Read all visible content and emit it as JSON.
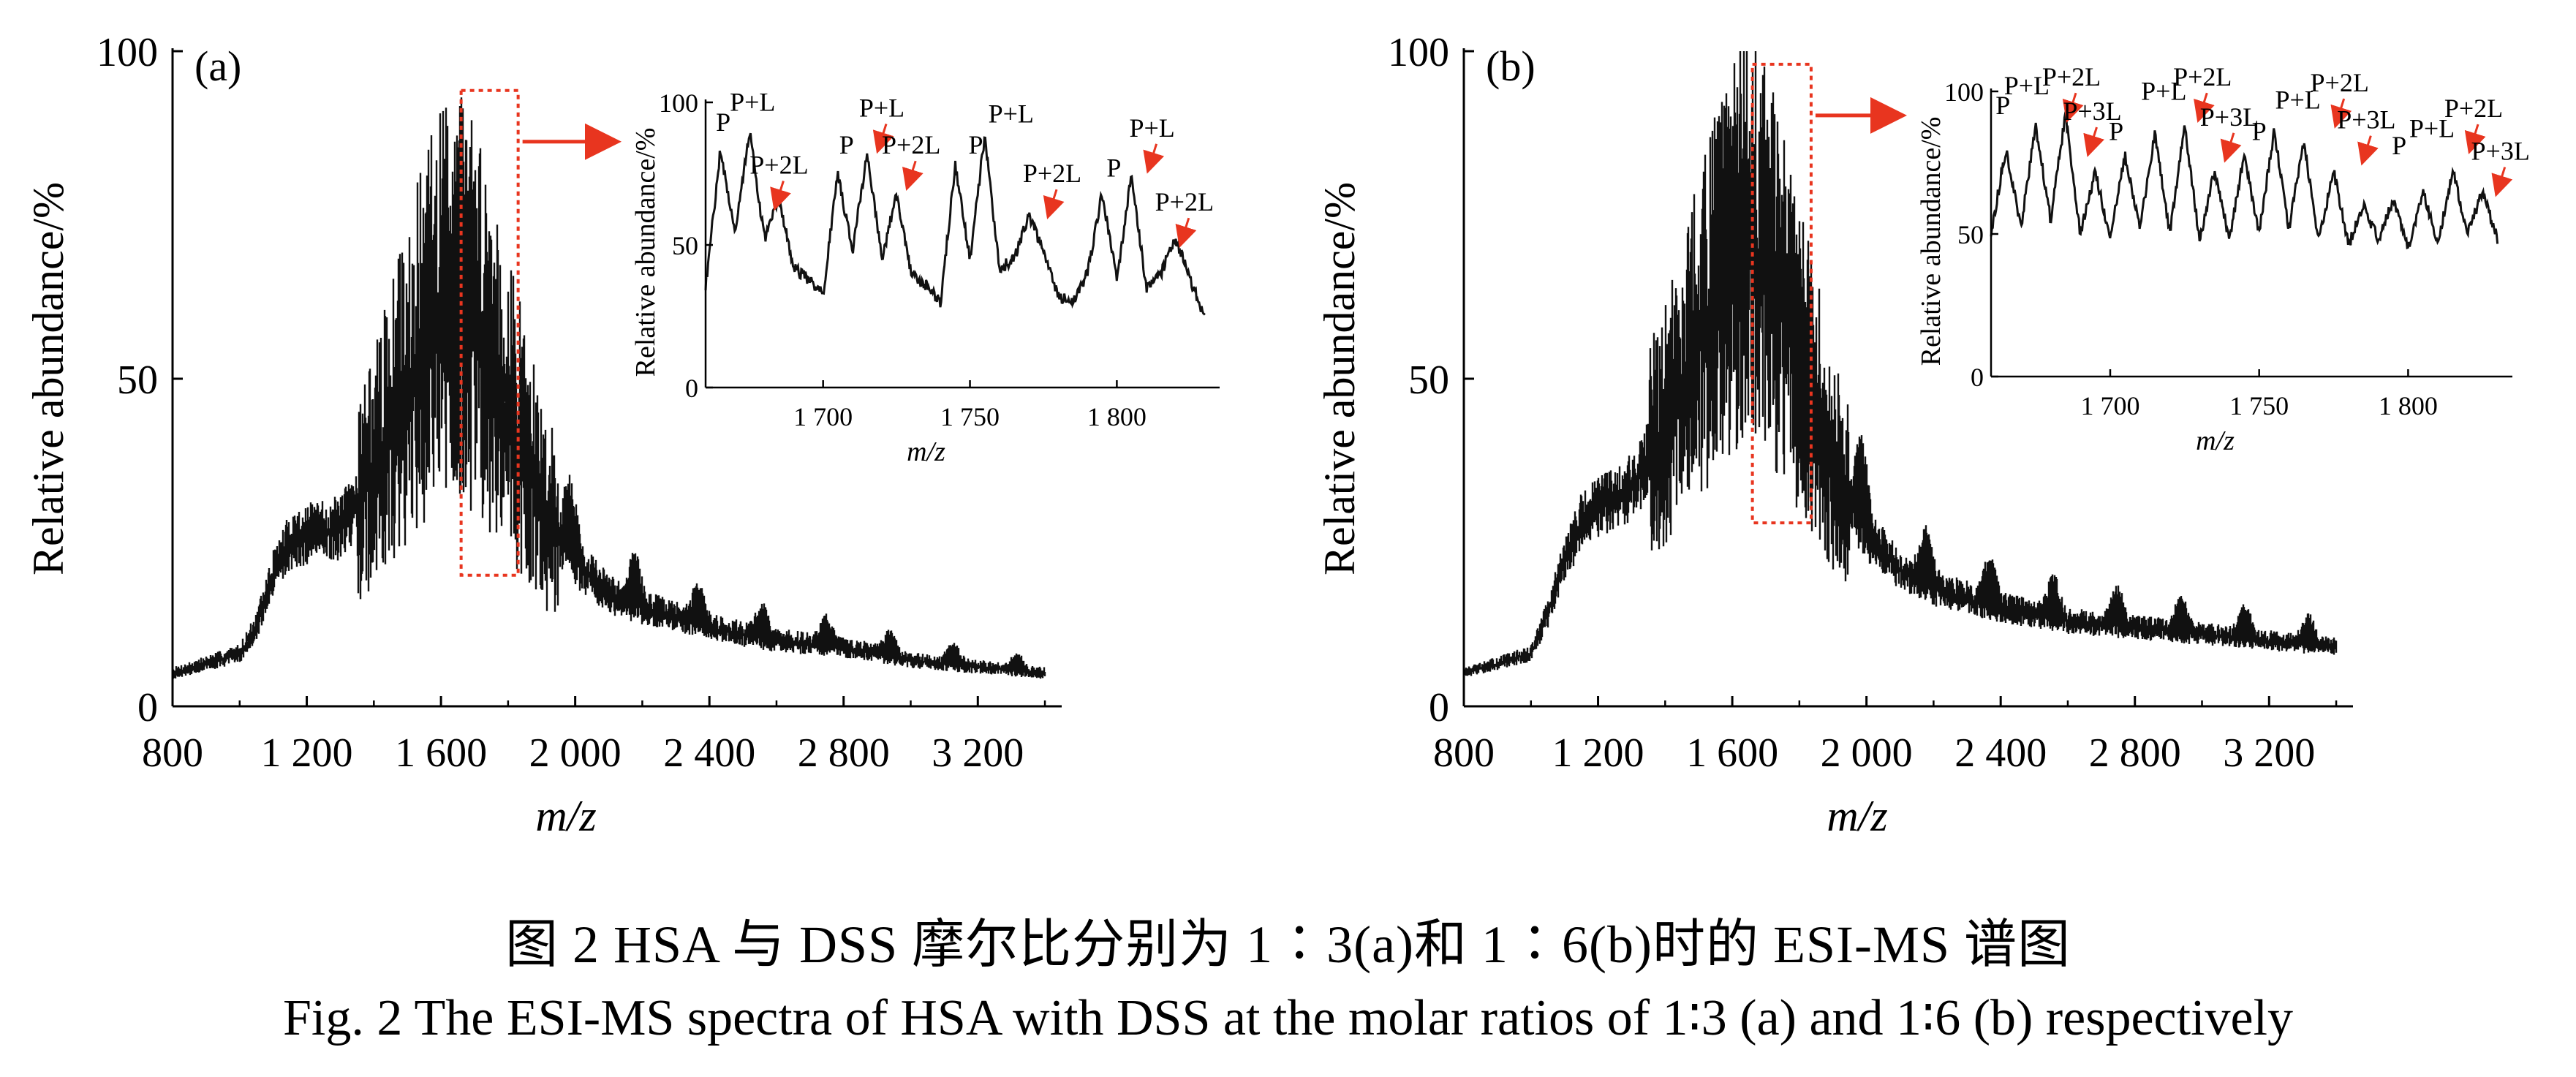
{
  "chart_data": [
    {
      "type": "line",
      "panel_label": "(a)",
      "xlabel": "m/z",
      "ylabel": "Relative abundance/%",
      "xlim": [
        800,
        3450
      ],
      "ylim": [
        0,
        100
      ],
      "xticks": [
        800,
        1200,
        1600,
        2000,
        2400,
        2800,
        3200
      ],
      "xtick_labels": [
        "800",
        "1 200",
        "1 600",
        "2 000",
        "2 400",
        "2 800",
        "3 200"
      ],
      "yticks": [
        0,
        50,
        100
      ],
      "ytick_labels": [
        "0",
        "50",
        "100"
      ],
      "series": [
        {
          "x": [
            800,
            1000,
            1050,
            1100,
            1150,
            1200,
            1300,
            1400,
            1500,
            1600,
            1650,
            1700,
            1750,
            1800,
            1850,
            1900,
            2000,
            2100,
            2200,
            2400,
            2600,
            2800,
            3000,
            3200,
            3400
          ],
          "y": [
            5,
            8,
            12,
            20,
            25,
            26,
            27,
            35,
            48,
            60,
            62,
            58,
            52,
            45,
            38,
            30,
            22,
            17,
            15,
            12,
            10,
            9,
            7,
            6,
            5
          ]
        }
      ],
      "zoom_box": {
        "x": [
          1660,
          1830
        ],
        "y": [
          20,
          94
        ]
      },
      "inset": {
        "xlabel": "m/z",
        "ylabel": "Relative abundance/%",
        "xlim": [
          1660,
          1835
        ],
        "ylim": [
          0,
          100
        ],
        "xticks": [
          1700,
          1750,
          1800
        ],
        "xtick_labels": [
          "1 700",
          "1 750",
          "1 800"
        ],
        "yticks": [
          0,
          50,
          100
        ],
        "ytick_labels": [
          "0",
          "50",
          "100"
        ],
        "series": [
          {
            "x": [
              1660,
              1665,
              1670,
              1675,
              1680,
              1685,
              1690,
              1695,
              1700,
              1705,
              1710,
              1715,
              1720,
              1725,
              1730,
              1735,
              1740,
              1745,
              1750,
              1755,
              1760,
              1765,
              1770,
              1775,
              1780,
              1785,
              1790,
              1795,
              1800,
              1805,
              1810,
              1815,
              1820,
              1825,
              1830
            ],
            "y": [
              35,
              83,
              55,
              90,
              52,
              66,
              42,
              38,
              33,
              75,
              48,
              82,
              45,
              68,
              40,
              36,
              30,
              78,
              45,
              88,
              42,
              45,
              60,
              48,
              32,
              30,
              40,
              68,
              38,
              75,
              35,
              40,
              52,
              38,
              24
            ]
          }
        ],
        "annotations": [
          {
            "text": "P",
            "x": 1666,
            "y": 90,
            "arrow": false
          },
          {
            "text": "P+L",
            "x": 1676,
            "y": 97,
            "arrow": false
          },
          {
            "text": "P+2L",
            "x": 1685,
            "y": 75,
            "arrow": true
          },
          {
            "text": "P",
            "x": 1708,
            "y": 82,
            "arrow": false
          },
          {
            "text": "P+L",
            "x": 1720,
            "y": 95,
            "arrow": true
          },
          {
            "text": "P+2L",
            "x": 1730,
            "y": 82,
            "arrow": true
          },
          {
            "text": "P",
            "x": 1752,
            "y": 82,
            "arrow": false
          },
          {
            "text": "P+L",
            "x": 1764,
            "y": 93,
            "arrow": false
          },
          {
            "text": "P+2L",
            "x": 1778,
            "y": 72,
            "arrow": true
          },
          {
            "text": "P",
            "x": 1799,
            "y": 74,
            "arrow": false
          },
          {
            "text": "P+L",
            "x": 1812,
            "y": 88,
            "arrow": true
          },
          {
            "text": "P+2L",
            "x": 1823,
            "y": 62,
            "arrow": true
          }
        ]
      }
    },
    {
      "type": "line",
      "panel_label": "(b)",
      "xlabel": "m/z",
      "ylabel": "Relative abundance/%",
      "xlim": [
        800,
        3450
      ],
      "ylim": [
        0,
        100
      ],
      "xticks": [
        800,
        1200,
        1600,
        2000,
        2400,
        2800,
        3200
      ],
      "xtick_labels": [
        "800",
        "1 200",
        "1 600",
        "2 000",
        "2 400",
        "2 800",
        "3 200"
      ],
      "yticks": [
        0,
        50,
        100
      ],
      "ytick_labels": [
        "0",
        "50",
        "100"
      ],
      "series": [
        {
          "x": [
            800,
            1000,
            1050,
            1100,
            1150,
            1200,
            1300,
            1400,
            1500,
            1600,
            1650,
            1700,
            1750,
            1800,
            1850,
            1900,
            2000,
            2100,
            2200,
            2400,
            2600,
            2800,
            3000,
            3200,
            3400
          ],
          "y": [
            5,
            8,
            14,
            22,
            28,
            30,
            33,
            42,
            55,
            68,
            70,
            66,
            60,
            52,
            45,
            36,
            26,
            21,
            18,
            15,
            13,
            12,
            11,
            10,
            9
          ]
        }
      ],
      "zoom_box": {
        "x": [
          1660,
          1835
        ],
        "y": [
          28,
          98
        ]
      },
      "inset": {
        "xlabel": "m/z",
        "ylabel": "Relative abundance/%",
        "xlim": [
          1660,
          1835
        ],
        "ylim": [
          0,
          100
        ],
        "xticks": [
          1700,
          1750,
          1800
        ],
        "xtick_labels": [
          "1 700",
          "1 750",
          "1 800"
        ],
        "yticks": [
          0,
          50,
          100
        ],
        "ytick_labels": [
          "0",
          "50",
          "100"
        ],
        "series": [
          {
            "x": [
              1660,
              1665,
              1670,
              1675,
              1680,
              1685,
              1690,
              1695,
              1700,
              1705,
              1710,
              1715,
              1720,
              1725,
              1730,
              1735,
              1740,
              1745,
              1750,
              1755,
              1760,
              1765,
              1770,
              1775,
              1780,
              1785,
              1790,
              1795,
              1800,
              1805,
              1810,
              1815,
              1820,
              1825,
              1830
            ],
            "y": [
              50,
              80,
              52,
              88,
              55,
              92,
              50,
              72,
              48,
              78,
              52,
              85,
              50,
              88,
              48,
              72,
              48,
              78,
              50,
              86,
              52,
              82,
              48,
              72,
              46,
              60,
              48,
              62,
              45,
              65,
              47,
              72,
              50,
              65,
              48
            ]
          }
        ],
        "annotations": [
          {
            "text": "P",
            "x": 1664,
            "y": 92,
            "arrow": false
          },
          {
            "text": "P+L",
            "x": 1672,
            "y": 99,
            "arrow": false
          },
          {
            "text": "P+2L",
            "x": 1687,
            "y": 102,
            "arrow": true
          },
          {
            "text": "P+3L",
            "x": 1694,
            "y": 90,
            "arrow": true
          },
          {
            "text": "P",
            "x": 1702,
            "y": 83,
            "arrow": false
          },
          {
            "text": "P+L",
            "x": 1718,
            "y": 97,
            "arrow": false
          },
          {
            "text": "P+2L",
            "x": 1731,
            "y": 102,
            "arrow": true
          },
          {
            "text": "P+3L",
            "x": 1740,
            "y": 88,
            "arrow": true
          },
          {
            "text": "P",
            "x": 1750,
            "y": 83,
            "arrow": false
          },
          {
            "text": "P+L",
            "x": 1763,
            "y": 94,
            "arrow": false
          },
          {
            "text": "P+2L",
            "x": 1777,
            "y": 100,
            "arrow": true
          },
          {
            "text": "P+3L",
            "x": 1786,
            "y": 87,
            "arrow": true
          },
          {
            "text": "P",
            "x": 1797,
            "y": 78,
            "arrow": false
          },
          {
            "text": "P+L",
            "x": 1808,
            "y": 84,
            "arrow": false
          },
          {
            "text": "P+2L",
            "x": 1822,
            "y": 91,
            "arrow": true
          },
          {
            "text": "P+3L",
            "x": 1831,
            "y": 76,
            "arrow": true
          }
        ]
      }
    }
  ],
  "caption": {
    "cn": "图 2   HSA 与 DSS 摩尔比分别为 1∶3(a)和 1∶6(b)时的 ESI-MS 谱图",
    "en": "Fig. 2  The ESI-MS spectra of HSA with DSS at the molar ratios of 1∶3 (a) and 1∶6 (b) respectively"
  },
  "colors": {
    "trace": "#111111",
    "zoom_box": "#e8351f",
    "arrow": "#e8351f"
  }
}
